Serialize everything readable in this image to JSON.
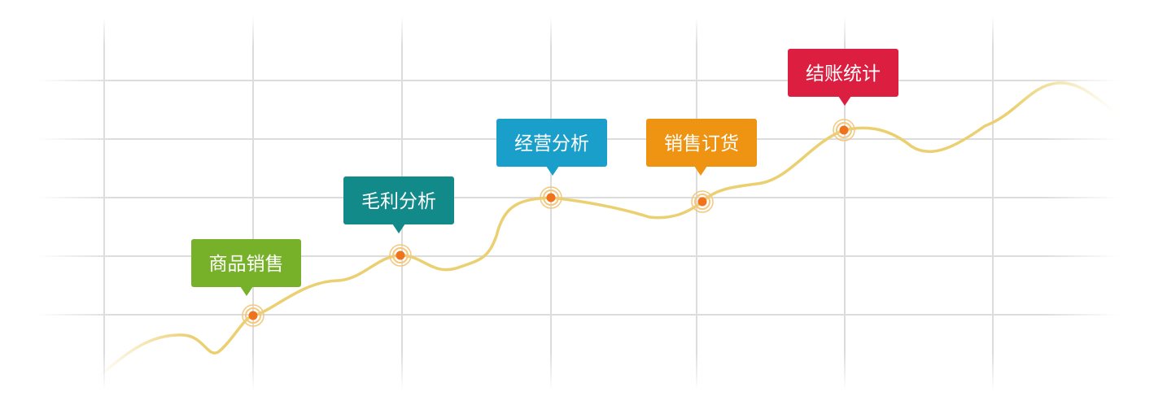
{
  "milestones": [
    {
      "label": "商品销售",
      "color": "#77b12a"
    },
    {
      "label": "毛利分析",
      "color": "#138a8a"
    },
    {
      "label": "经营分析",
      "color": "#1a9fcb"
    },
    {
      "label": "销售订货",
      "color": "#ef9312"
    },
    {
      "label": "结账统计",
      "color": "#dc1f41"
    }
  ],
  "colors": {
    "curve": "#ebd072",
    "grid": "#dcdcdc",
    "marker": "#f0731c",
    "marker_ring": "#f3c87d"
  }
}
